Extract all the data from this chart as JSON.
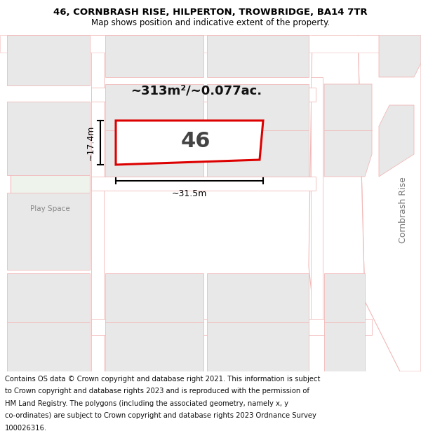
{
  "title_line1": "46, CORNBRASH RISE, HILPERTON, TROWBRIDGE, BA14 7TR",
  "title_line2": "Map shows position and indicative extent of the property.",
  "area_text": "~313m²/~0.077ac.",
  "width_text": "~31.5m",
  "height_text": "~17.4m",
  "plot_number": "46",
  "play_space_text": "Play Space",
  "cornbrash_rise_text": "Cornbrash Rise",
  "map_bg": "#ffffff",
  "road_stroke": "#f2b8b8",
  "building_fill": "#e8e8e8",
  "green_fill": "#eef3ec",
  "plot_edge_color": "#dd0000",
  "dim_color": "#111111",
  "title_fontsize": 9.5,
  "subtitle_fontsize": 8.5,
  "footer_fontsize": 7.2,
  "footer_lines": [
    "Contains OS data © Crown copyright and database right 2021. This information is subject",
    "to Crown copyright and database rights 2023 and is reproduced with the permission of",
    "HM Land Registry. The polygons (including the associated geometry, namely x, y",
    "co-ordinates) are subject to Crown copyright and database rights 2023 Ordnance Survey",
    "100026316."
  ]
}
